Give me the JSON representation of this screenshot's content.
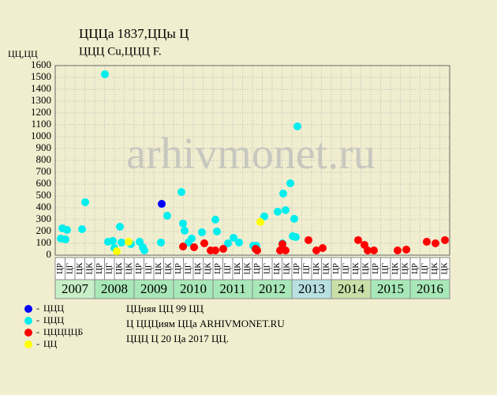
{
  "chart_data": {
    "type": "scatter",
    "title": "ЦЦЦа 1837,ЦЦы Ц",
    "subtitle": "ЦЦЦ Cu,ЦЦЦ F.",
    "y_label": "ЦЦ,ЦЦ",
    "watermark": "arhivmonet.ru",
    "xlim": [
      2007,
      2017
    ],
    "years": [
      "2007",
      "2008",
      "2009",
      "2010",
      "2011",
      "2012",
      "2013",
      "2014",
      "2015",
      "2016"
    ],
    "year_colors": [
      "#c8f0c8",
      "#a8e8b8",
      "#a8e8b8",
      "#a8e8b8",
      "#a8e8b8",
      "#a8e8b8",
      "#b8e0e0",
      "#c8e0a8",
      "#a8e8b8",
      "#a8e8b8"
    ],
    "sub_labels": [
      "ЦР",
      "ЦГ",
      "ЦК",
      "ЦК"
    ],
    "ylim": [
      0,
      1600
    ],
    "yticks": [
      0,
      100,
      200,
      300,
      400,
      500,
      600,
      700,
      800,
      900,
      1000,
      1100,
      1200,
      1300,
      1400,
      1500,
      1600
    ],
    "grid": true,
    "series": [
      {
        "name": "ЦЦЦ",
        "color": "#0000ff",
        "x": [
          2009.7
        ],
        "values": [
          433
        ]
      },
      {
        "name": "ЦЦЦ",
        "color": "#00eeee",
        "x": [
          2007.14,
          2007.18,
          2007.26,
          2007.3,
          2007.68,
          2007.76,
          2008.26,
          2008.34,
          2008.46,
          2008.5,
          2008.64,
          2008.68,
          2008.92,
          2009.14,
          2009.22,
          2009.26,
          2009.68,
          2009.84,
          2010.2,
          2010.24,
          2010.28,
          2010.38,
          2010.46,
          2010.72,
          2011.06,
          2011.1,
          2011.38,
          2011.52,
          2011.66,
          2012.02,
          2012.1,
          2012.3,
          2012.64,
          2012.78,
          2012.84,
          2012.76,
          2012.96,
          2013.02,
          2013.06,
          2013.1,
          2013.14
        ],
        "values": [
          140,
          227,
          133,
          213,
          220,
          447,
          1527,
          113,
          120,
          60,
          240,
          107,
          93,
          113,
          67,
          40,
          107,
          333,
          533,
          267,
          207,
          107,
          140,
          193,
          300,
          200,
          100,
          147,
          107,
          80,
          80,
          327,
          367,
          520,
          380,
          100,
          607,
          160,
          307,
          153,
          1087
        ]
      },
      {
        "name": "ЦЦЦЦЦБ",
        "color": "#ff0000",
        "x": [
          2010.24,
          2010.52,
          2010.78,
          2010.94,
          2011.06,
          2011.26,
          2012.08,
          2012.12,
          2012.7,
          2012.76,
          2012.84,
          2013.42,
          2013.62,
          2013.78,
          2014.68,
          2014.84,
          2014.92,
          2015.08,
          2015.68,
          2015.9,
          2016.42,
          2016.64,
          2016.88
        ],
        "values": [
          73,
          67,
          100,
          40,
          40,
          53,
          53,
          40,
          40,
          93,
          40,
          127,
          40,
          60,
          127,
          87,
          40,
          40,
          40,
          47,
          113,
          100,
          127
        ]
      },
      {
        "name": "ЦЦ",
        "color": "#ffff00",
        "x": [
          2008.56,
          2008.86,
          2012.2
        ],
        "values": [
          33,
          113,
          280
        ]
      }
    ],
    "notes": [
      "ЦЦняя ЦЦ 99 ЦЦ",
      "Ц ЦЦЦиям ЦЦа ARHIVMONET.RU",
      "ЦЦЦ Ц 20 Цa 2017 ЦЦ."
    ]
  }
}
